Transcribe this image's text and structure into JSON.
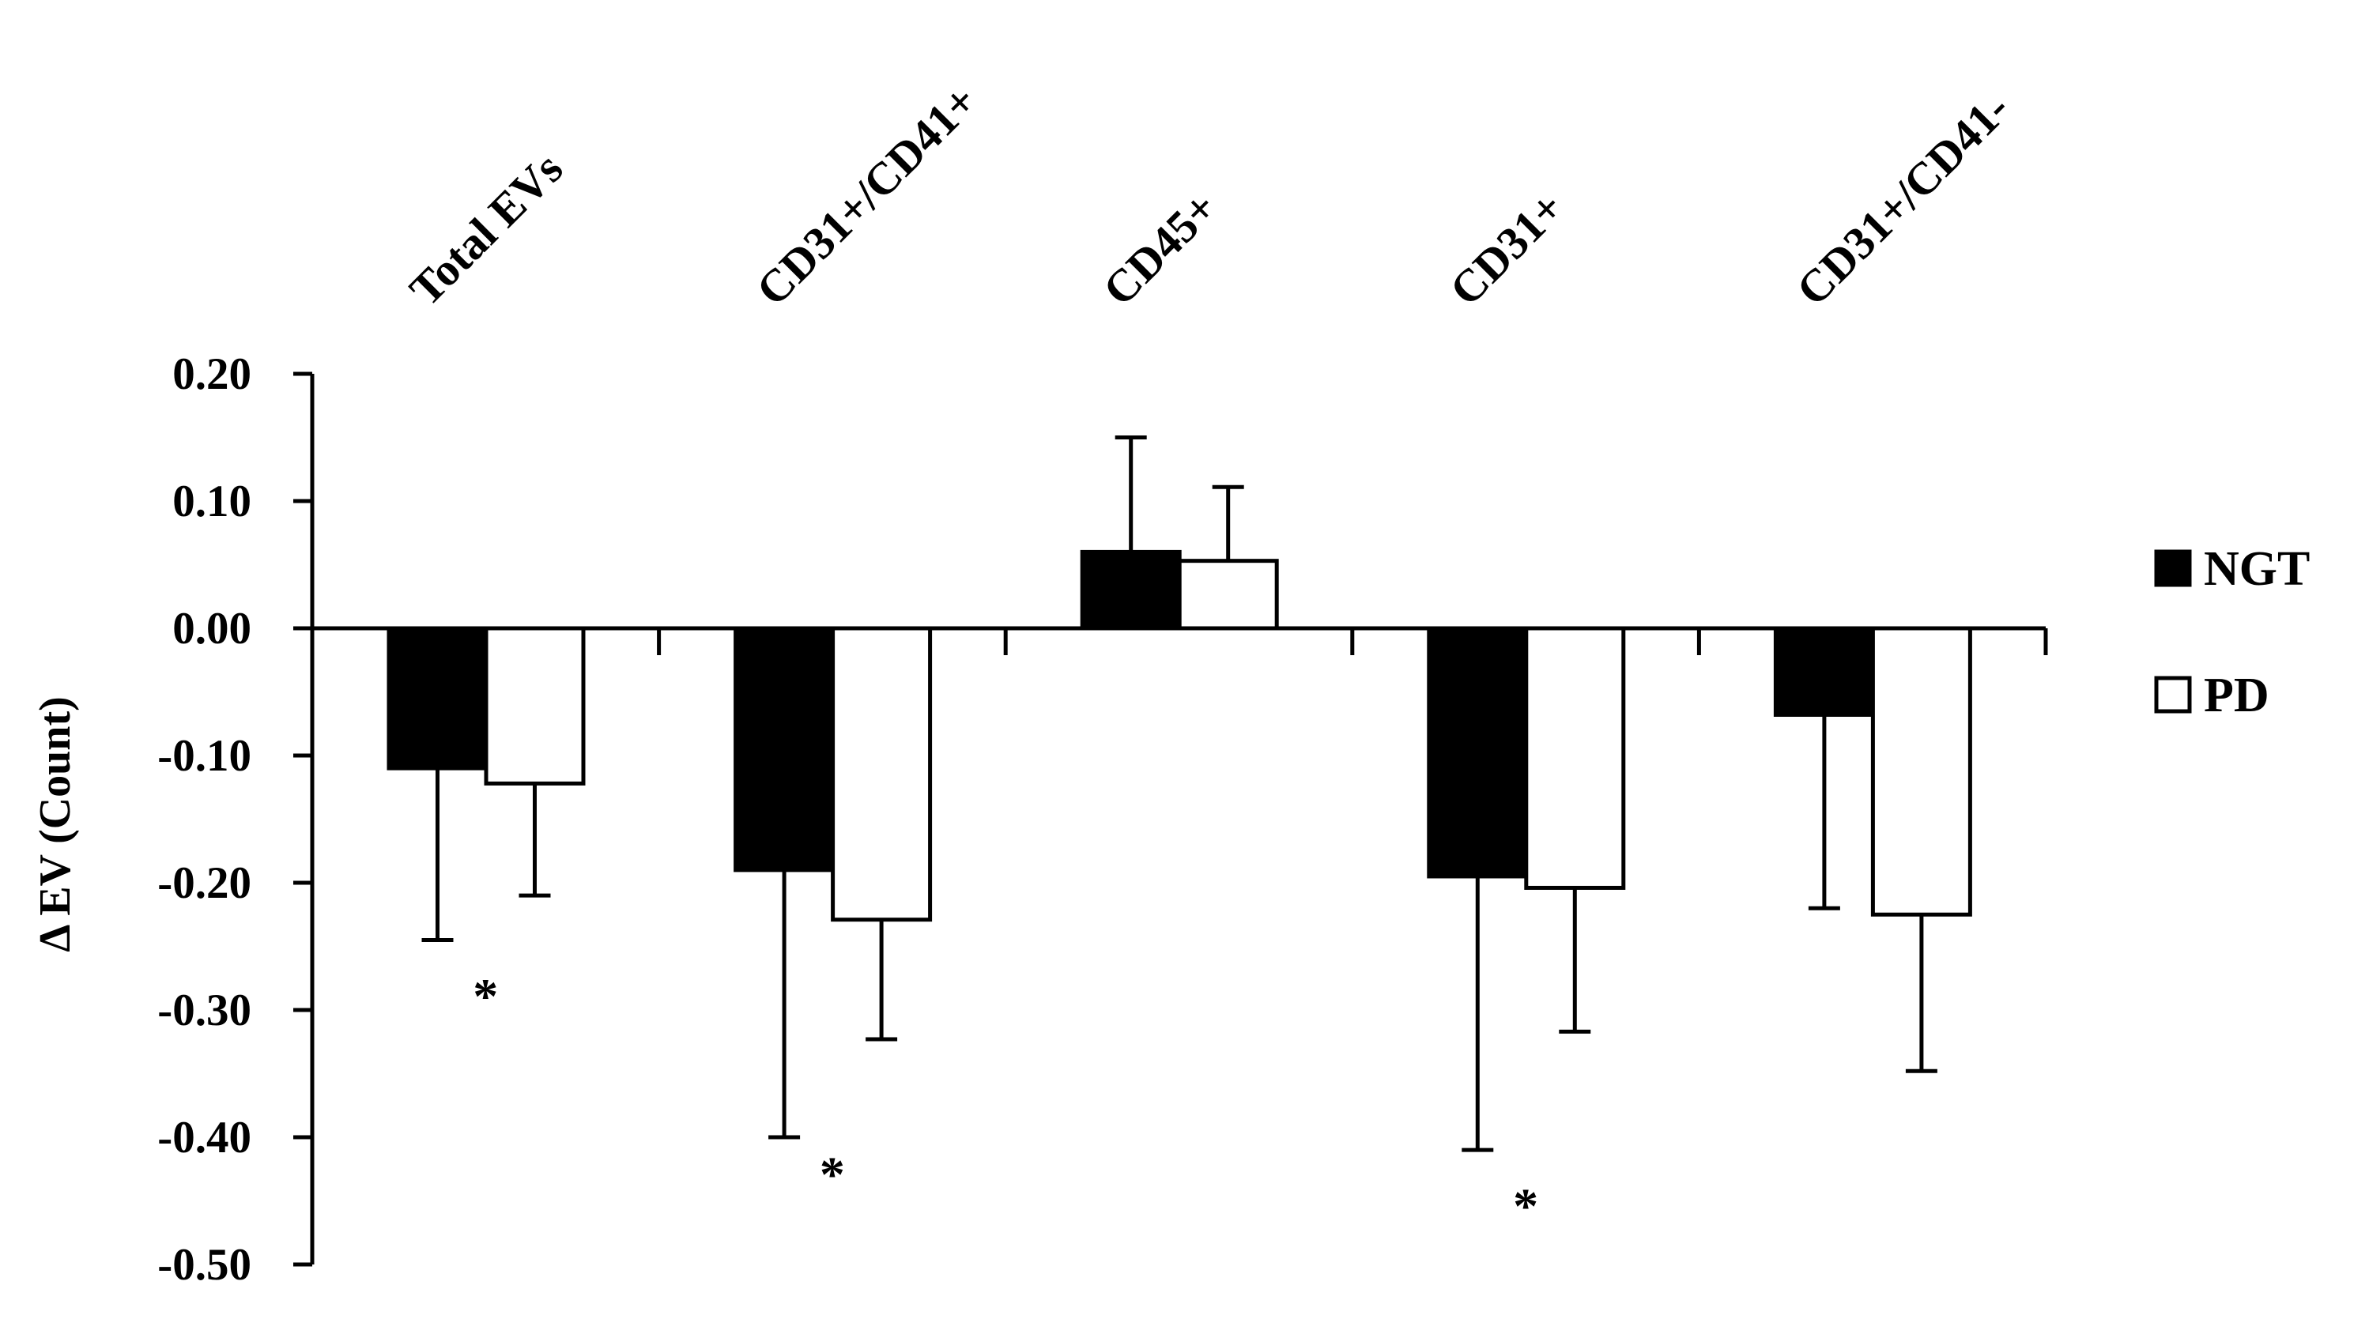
{
  "chart_data": {
    "type": "bar",
    "categories": [
      "Total EVs",
      "CD31+/CD41+",
      "CD45+",
      "CD31+",
      "CD31+/CD41-"
    ],
    "ylabel": "Δ EV (Count)",
    "ylim": [
      -0.5,
      0.2
    ],
    "yticks": [
      0.2,
      0.1,
      0.0,
      -0.1,
      -0.2,
      -0.3,
      -0.4,
      -0.5
    ],
    "ytick_labels": [
      "0.20",
      "0.10",
      "0.00",
      "-0.10",
      "-0.20",
      "-0.30",
      "-0.40",
      "-0.50"
    ],
    "series": [
      {
        "name": "NGT",
        "values": [
          -0.11,
          -0.19,
          0.06,
          -0.195,
          -0.068
        ],
        "errors": [
          0.135,
          0.21,
          0.09,
          0.215,
          0.152
        ],
        "color": "#000000"
      },
      {
        "name": "PD",
        "values": [
          -0.122,
          -0.229,
          0.053,
          -0.204,
          -0.225
        ],
        "errors": [
          0.088,
          0.094,
          0.058,
          0.113,
          0.123
        ],
        "color": "#ffffff"
      }
    ],
    "annotations": [
      {
        "category_index": 0,
        "text": "*",
        "y": -0.29
      },
      {
        "category_index": 1,
        "text": "*",
        "y": -0.43
      },
      {
        "category_index": 3,
        "text": "*",
        "y": -0.455
      }
    ],
    "legend_position": "right",
    "grid": false
  }
}
